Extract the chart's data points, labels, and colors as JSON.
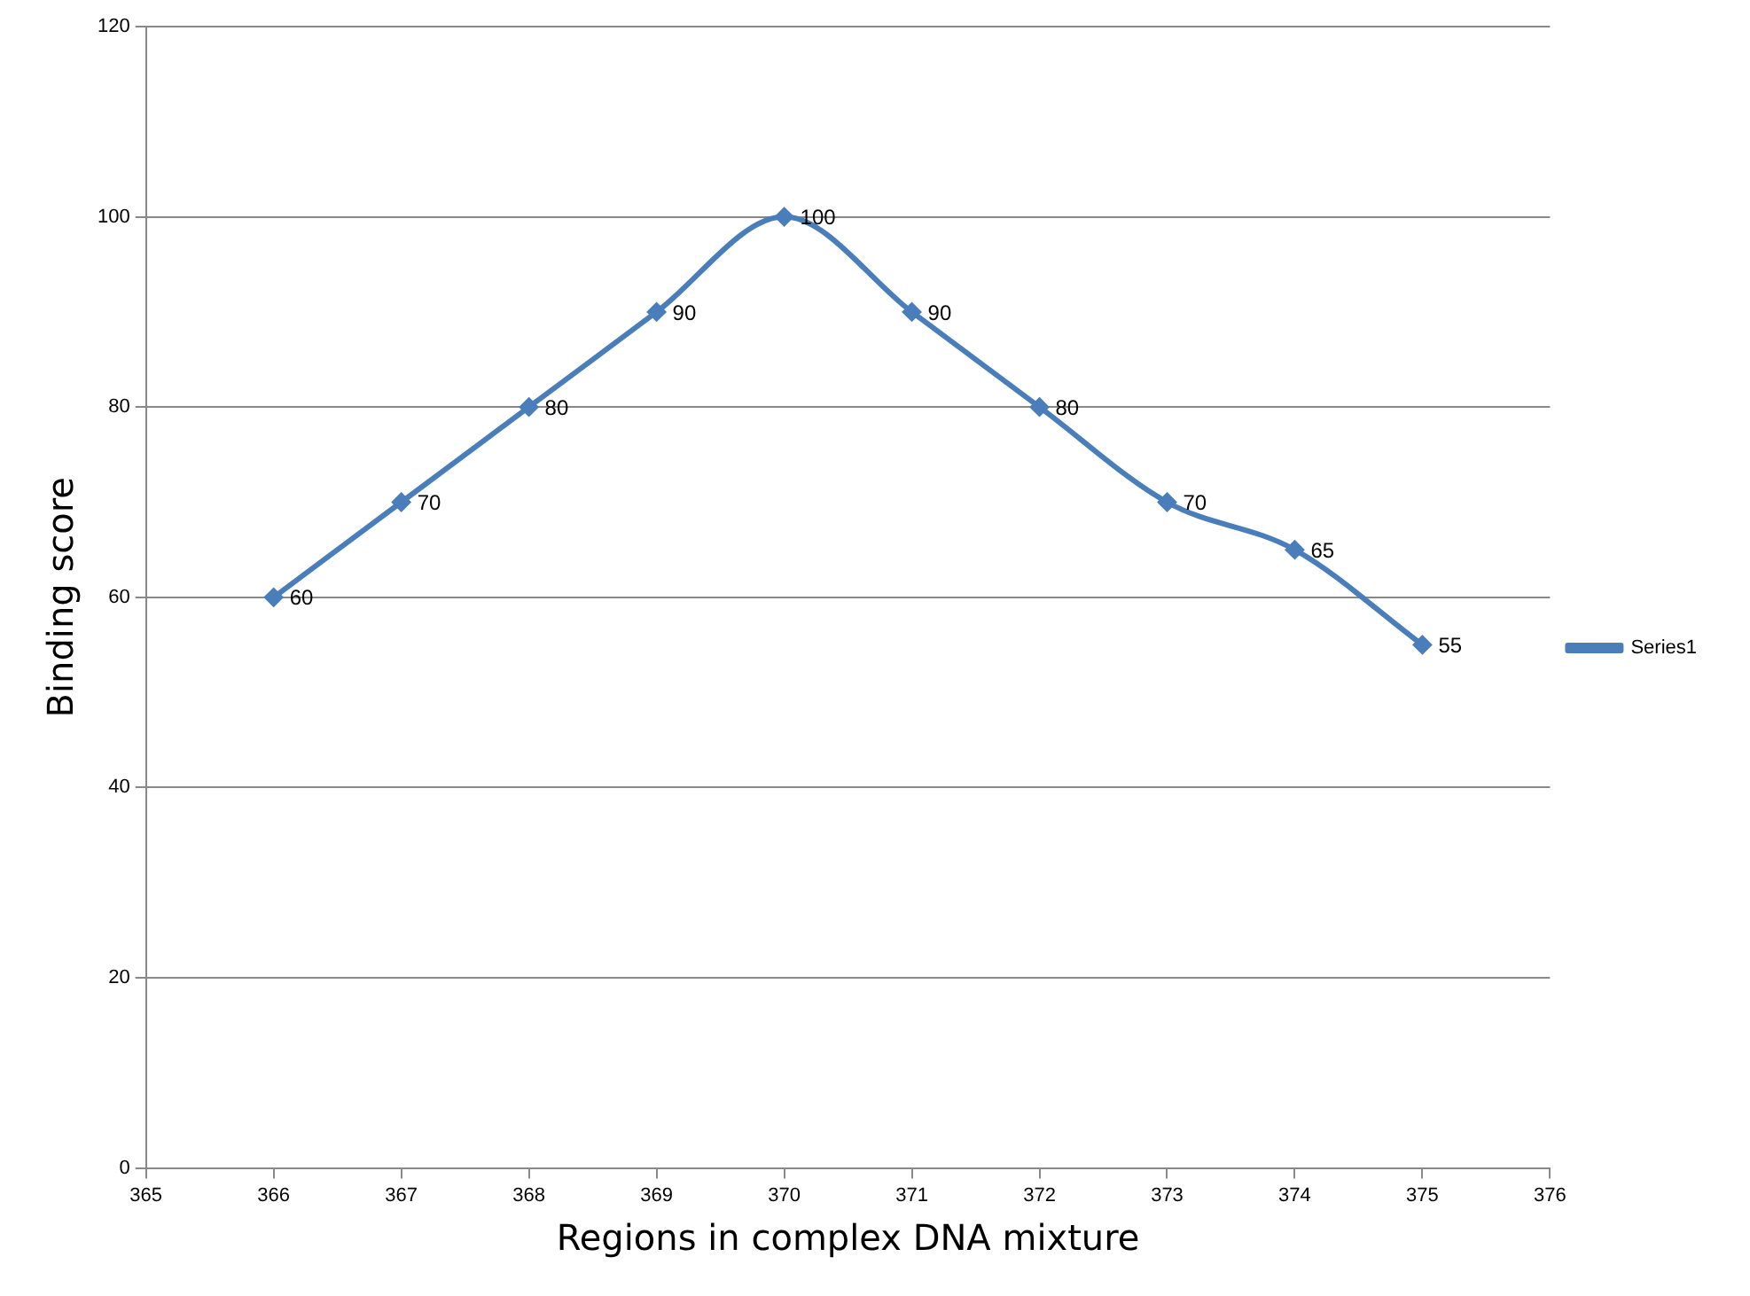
{
  "chart_data": {
    "type": "line",
    "xlabel": "Regions in complex DNA mixture",
    "ylabel": "Binding score",
    "x": [
      366,
      367,
      368,
      369,
      370,
      371,
      372,
      373,
      374,
      375
    ],
    "series": [
      {
        "name": "Series1",
        "color": "#4a7ebb",
        "values": [
          60,
          70,
          80,
          90,
          100,
          90,
          80,
          70,
          65,
          55
        ]
      }
    ],
    "xlim": [
      365,
      376
    ],
    "xticks": [
      365,
      366,
      367,
      368,
      369,
      370,
      371,
      372,
      373,
      374,
      375,
      376
    ],
    "ylim": [
      0,
      120
    ],
    "yticks": [
      0,
      20,
      40,
      60,
      80,
      100,
      120
    ],
    "grid": "y",
    "legend": "right",
    "marker": "diamond",
    "data_labels": true
  }
}
